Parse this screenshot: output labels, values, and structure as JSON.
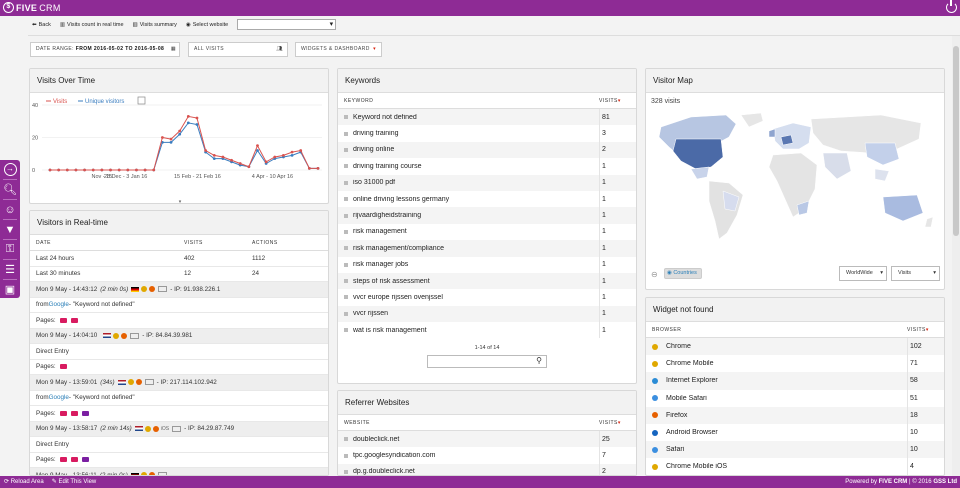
{
  "app": {
    "brand": "FIVE",
    "brand_suffix": "CRM"
  },
  "topnav": {
    "back": "Back",
    "realtime": "Visits count in real time",
    "summary": "Visits summary",
    "select_website": "Select website"
  },
  "filters": {
    "date_range_label": "DATE RANGE:",
    "date_range_value": "FROM 2016-05-02 TO 2016-05-08",
    "segment": "ALL VISITS",
    "widgets": "WIDGETS & DASHBOARD"
  },
  "visits_over_time": {
    "title": "Visits Over Time",
    "legend": [
      "Visits",
      "Unique visitors"
    ],
    "chart_data": {
      "type": "line",
      "x_tick_labels": [
        "Nov - 15",
        "28 Dec - 3 Jan 16",
        "15 Feb - 21 Feb 16",
        "4 Apr - 10 Apr 16"
      ],
      "y_ticks": [
        0,
        20,
        40
      ],
      "ylim": [
        0,
        40
      ],
      "series": [
        {
          "name": "Visits",
          "color": "#d9534f",
          "values": [
            0,
            0,
            0,
            0,
            0,
            0,
            0,
            0,
            0,
            0,
            0,
            0,
            0,
            20,
            19,
            24,
            33,
            32,
            12,
            9,
            8,
            6,
            4,
            2,
            15,
            5,
            8,
            9,
            11,
            12,
            1,
            1
          ]
        },
        {
          "name": "Unique visitors",
          "color": "#3a7dbf",
          "values": [
            0,
            0,
            0,
            0,
            0,
            0,
            0,
            0,
            0,
            0,
            0,
            0,
            0,
            17,
            17,
            22,
            29,
            28,
            11,
            7,
            7,
            5,
            3,
            2,
            12,
            4,
            7,
            8,
            9,
            11,
            1,
            1
          ]
        }
      ]
    }
  },
  "realtime": {
    "title": "Visitors in Real-time",
    "columns": [
      "DATE",
      "VISITS",
      "ACTIONS"
    ],
    "rows": [
      {
        "label": "Last 24 hours",
        "visits": "402",
        "actions": "1112"
      },
      {
        "label": "Last 30 minutes",
        "visits": "12",
        "actions": "24"
      }
    ],
    "entries": [
      {
        "time": "Mon 9 May - 14:43:12",
        "dur": "(2 min 0s)",
        "ip": "- IP: 91.938.226.1",
        "src_prefix": "from ",
        "src_link": "Google",
        "src_rest": " - \"Keyword not defined\"",
        "pages_label": "Pages:",
        "folders": 2
      },
      {
        "time": "Mon 9 May - 14:04:10",
        "dur": "",
        "ip": "- IP: 84.84.39.981",
        "src_prefix": "Direct Entry",
        "src_link": "",
        "src_rest": "",
        "pages_label": "Pages:",
        "folders": 1
      },
      {
        "time": "Mon 9 May - 13:59:01",
        "dur": "(34s)",
        "ip": "- IP: 217.114.102.942",
        "src_prefix": "from ",
        "src_link": "Google",
        "src_rest": " - \"Keyword not defined\"",
        "pages_label": "Pages:",
        "folders": 3
      },
      {
        "time": "Mon 9 May - 13:58:17",
        "dur": "(2 min 14s)",
        "ip": "- IP: 84.29.87.749",
        "src_prefix": "Direct Entry",
        "src_link": "",
        "src_rest": "",
        "pages_label": "Pages:",
        "folders": 3
      },
      {
        "time": "Mon 9 May - 13:56:11",
        "dur": "(2 min 0s)",
        "ip": "",
        "src_prefix": "",
        "src_link": "",
        "src_rest": "",
        "pages_label": "",
        "folders": 0
      }
    ],
    "ios_label": "iOS"
  },
  "keywords": {
    "title": "Keywords",
    "col_keyword": "KEYWORD",
    "col_visits": "VISITS",
    "rows": [
      {
        "k": "Keyword not defined",
        "v": "81"
      },
      {
        "k": "driving training",
        "v": "3"
      },
      {
        "k": "driving online",
        "v": "2"
      },
      {
        "k": "driving training course",
        "v": "1"
      },
      {
        "k": "iso 31000 pdf",
        "v": "1"
      },
      {
        "k": "online driving lessons germany",
        "v": "1"
      },
      {
        "k": "rijvaardigheidstraining",
        "v": "1"
      },
      {
        "k": "risk management",
        "v": "1"
      },
      {
        "k": "risk management/compliance",
        "v": "1"
      },
      {
        "k": "risk manager jobs",
        "v": "1"
      },
      {
        "k": "steps of risk assessment",
        "v": "1"
      },
      {
        "k": "vvcr europe rijssen ovenjssel",
        "v": "1"
      },
      {
        "k": "vvcr rijssen",
        "v": "1"
      },
      {
        "k": "wat is risk management",
        "v": "1"
      }
    ],
    "pagination": "1-14 of 14"
  },
  "referrers": {
    "title": "Referrer Websites",
    "col_site": "WEBSITE",
    "col_visits": "VISITS",
    "rows": [
      {
        "k": "doubleclick.net",
        "v": "25"
      },
      {
        "k": "tpc.googlesyndication.com",
        "v": "7"
      },
      {
        "k": "dp.g.doubleclick.net",
        "v": "2"
      }
    ]
  },
  "visitor_map": {
    "title": "Visitor Map",
    "visits_label": "328 visits",
    "countries_button": "Countries",
    "region_select": "WorldWide",
    "metric_select": "Visits"
  },
  "browsers": {
    "title": "Widget not found",
    "col_browser": "BROWSER",
    "col_visits": "VISITS",
    "rows": [
      {
        "k": "Chrome",
        "v": "102",
        "c": "#e0a800"
      },
      {
        "k": "Chrome Mobile",
        "v": "71",
        "c": "#e0a800"
      },
      {
        "k": "Internet Explorer",
        "v": "58",
        "c": "#2b8cd6"
      },
      {
        "k": "Mobile Safari",
        "v": "51",
        "c": "#3c8fe0"
      },
      {
        "k": "Firefox",
        "v": "18",
        "c": "#e66000"
      },
      {
        "k": "Android Browser",
        "v": "10",
        "c": "#1565c0"
      },
      {
        "k": "Safari",
        "v": "10",
        "c": "#3c8fe0"
      },
      {
        "k": "Chrome Mobile iOS",
        "v": "4",
        "c": "#e0a800"
      }
    ]
  },
  "footer": {
    "reload": "Reload Area",
    "edit": "Edit This View",
    "powered_prefix": "Powered by",
    "powered_brand": "FIVE CRM",
    "copyright": "| © 2016",
    "company": "GSS Ltd"
  },
  "colors": {
    "brand": "#8e2b95",
    "accent_red": "#d9230f"
  }
}
